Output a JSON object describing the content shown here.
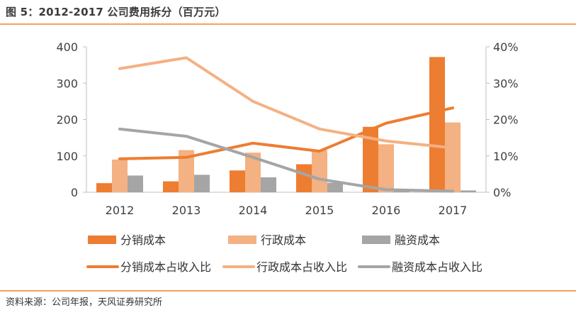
{
  "header": {
    "title": "图 5：2012-2017 公司费用拆分（百万元）"
  },
  "footer": {
    "source": "资料来源：公司年报，天风证券研究所"
  },
  "chart_data": {
    "type": "bar",
    "title": "",
    "xlabel": "",
    "ylabel": "",
    "categories": [
      "2012",
      "2013",
      "2014",
      "2015",
      "2016",
      "2017"
    ],
    "ylim": [
      0,
      400
    ],
    "yticks": [
      "0",
      "100",
      "200",
      "300",
      "400"
    ],
    "y2lim": [
      0,
      0.4
    ],
    "y2ticks": [
      "0%",
      "10%",
      "20%",
      "30%",
      "40%"
    ],
    "grid": false,
    "legend_position": "bottom",
    "colors": {
      "dark_orange": "#ed7d31",
      "light_orange": "#f4b183",
      "gray": "#a5a5a5"
    },
    "series": [
      {
        "name": "分销成本",
        "type": "bar",
        "axis": "left",
        "color": "#ed7d31",
        "values": [
          25,
          30,
          60,
          77,
          180,
          372
        ]
      },
      {
        "name": "行政成本",
        "type": "bar",
        "axis": "left",
        "color": "#f4b183",
        "values": [
          90,
          116,
          109,
          116,
          132,
          192
        ]
      },
      {
        "name": "融资成本",
        "type": "bar",
        "axis": "left",
        "color": "#a5a5a5",
        "values": [
          46,
          48,
          41,
          26,
          8,
          5
        ]
      },
      {
        "name": "分销成本占收入比",
        "type": "line",
        "axis": "right",
        "color": "#ed7d31",
        "values": [
          0.092,
          0.096,
          0.135,
          0.113,
          0.19,
          0.232
        ]
      },
      {
        "name": "行政成本占收入比",
        "type": "line",
        "axis": "right",
        "color": "#f4b183",
        "values": [
          0.34,
          0.37,
          0.25,
          0.174,
          0.141,
          0.122
        ]
      },
      {
        "name": "融资成本占收入比",
        "type": "line",
        "axis": "right",
        "color": "#a5a5a5",
        "values": [
          0.174,
          0.154,
          0.096,
          0.036,
          0.007,
          0.003
        ]
      }
    ]
  }
}
